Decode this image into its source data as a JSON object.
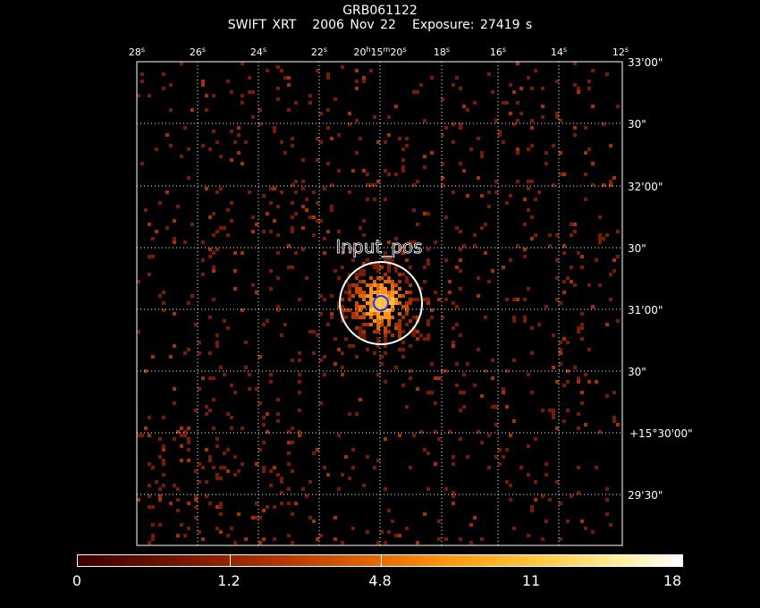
{
  "header": {
    "title": "GRB061122",
    "instrument": "SWIFT XRT",
    "date": "2006 Nov 22",
    "exposure": "Exposure: 27419 s"
  },
  "ra_labels": [
    {
      "h": "",
      "m": "",
      "s": "28",
      "u": "s"
    },
    {
      "h": "",
      "m": "",
      "s": "26",
      "u": "s"
    },
    {
      "h": "",
      "m": "",
      "s": "24",
      "u": "s"
    },
    {
      "h": "",
      "m": "",
      "s": "22",
      "u": "s"
    },
    {
      "h": "20",
      "m": "15",
      "s": "20",
      "u": "s"
    },
    {
      "h": "",
      "m": "",
      "s": "18",
      "u": "s"
    },
    {
      "h": "",
      "m": "",
      "s": "16",
      "u": "s"
    },
    {
      "h": "",
      "m": "",
      "s": "14",
      "u": "s"
    },
    {
      "h": "",
      "m": "",
      "s": "12",
      "u": "s"
    }
  ],
  "dec_labels": [
    "33'00\"",
    "30\"",
    "32'00\"",
    "30\"",
    "31'00\"",
    "30\"",
    "+15°30'00\"",
    "29'30\""
  ],
  "source_label": "Input_pos",
  "colorbar": {
    "labels": [
      "0",
      "1.2",
      "4.8",
      "11",
      "18"
    ],
    "colors": [
      "#7a1a00",
      "#a83000",
      "#c84800",
      "#e06800",
      "#ff9020",
      "#ffc040"
    ]
  }
}
